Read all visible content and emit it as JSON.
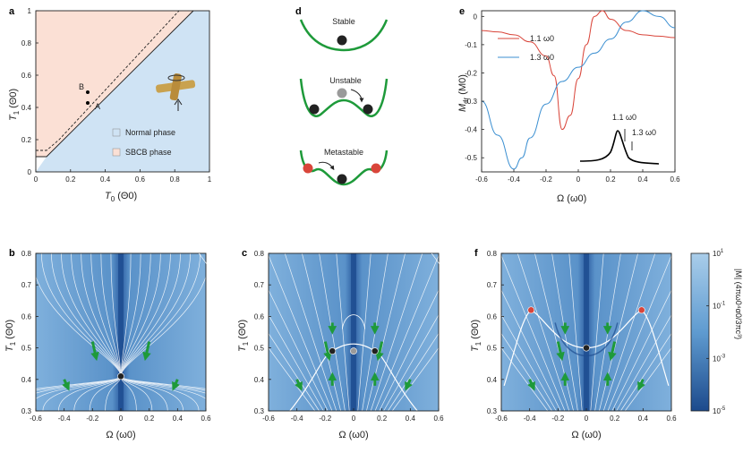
{
  "panels": {
    "a": {
      "label": "a",
      "xlabel": "T",
      "xsub": "0",
      "xunit": "(Θ0)",
      "ylabel": "T",
      "ysub": "1",
      "yunit": "(Θ0)",
      "xticks": [
        "0",
        "0.2",
        "0.4",
        "0.6",
        "0.8",
        "1"
      ],
      "yticks": [
        "0",
        "0.2",
        "0.4",
        "0.6",
        "0.8",
        "1"
      ],
      "legend": [
        "Normal phase",
        "SBCB phase"
      ],
      "pointA": "A",
      "pointB": "B"
    },
    "d": {
      "label": "d",
      "states": [
        "Stable",
        "Unstable",
        "Metastable"
      ]
    },
    "e": {
      "label": "e",
      "ylabel": "M",
      "ysub": "dr",
      "yunit": "(M0)",
      "xlabel": "Ω (ω0)",
      "xticks": [
        "-0.6",
        "-0.4",
        "-0.2",
        "0",
        "0.2",
        "0.4",
        "0.6"
      ],
      "yticks": [
        "0",
        "-0.1",
        "-0.2",
        "-0.3",
        "-0.4",
        "-0.5"
      ],
      "legend": [
        "1.1 ω0",
        "1.3 ω0"
      ],
      "inset_labels": [
        "1.1 ω0",
        "1.3 ω0"
      ]
    },
    "b": {
      "label": "b"
    },
    "c": {
      "label": "c"
    },
    "f": {
      "label": "f"
    },
    "bottom": {
      "xlabel": "Ω (ω0)",
      "ylabel": "T",
      "ysub": "1",
      "yunit": "(Θ0)",
      "xticks": [
        "-0.6",
        "-0.4",
        "-0.2",
        "0",
        "0.2",
        "0.4",
        "0.6"
      ],
      "yticks": [
        "0.3",
        "0.4",
        "0.5",
        "0.6",
        "0.7",
        "0.8"
      ]
    },
    "colorbar": {
      "ticks": [
        "10",
        "10",
        "10",
        "10"
      ],
      "exps": [
        "1",
        "-1",
        "-3",
        "-5"
      ],
      "label": "|M| (4πω0⁴α0/3πc³)"
    }
  },
  "colors": {
    "normal": "#cfe3f4",
    "sbcb": "#fbe0d5",
    "red": "#d9453a",
    "blue": "#3b8fd1",
    "green": "#1e9a3a"
  },
  "chart_data": [
    {
      "type": "area",
      "title": "",
      "xlabel": "T0 (Θ0)",
      "ylabel": "T1 (Θ0)",
      "xlim": [
        0,
        1
      ],
      "ylim": [
        0,
        1
      ],
      "series": [
        {
          "name": "Normal phase"
        },
        {
          "name": "SBCB phase"
        }
      ],
      "points": [
        {
          "name": "A",
          "x": 0.4,
          "y": 0.43
        },
        {
          "name": "B",
          "x": 0.4,
          "y": 0.5
        }
      ]
    },
    {
      "type": "line",
      "title": "",
      "xlabel": "Ω (ω0)",
      "ylabel": "Mdr (M0)",
      "xlim": [
        -0.6,
        0.6
      ],
      "ylim": [
        -0.55,
        0.02
      ],
      "series": [
        {
          "name": "1.1 ω0",
          "x": [
            -0.6,
            -0.5,
            -0.4,
            -0.3,
            -0.2,
            -0.15,
            -0.1,
            -0.05,
            0,
            0.05,
            0.1,
            0.15,
            0.2,
            0.3,
            0.4,
            0.5,
            0.6
          ],
          "y": [
            -0.05,
            -0.055,
            -0.065,
            -0.09,
            -0.14,
            -0.21,
            -0.4,
            -0.35,
            -0.22,
            -0.1,
            0.0,
            0.02,
            -0.01,
            -0.05,
            -0.065,
            -0.07,
            -0.075
          ]
        },
        {
          "name": "1.3 ω0",
          "x": [
            -0.6,
            -0.5,
            -0.4,
            -0.35,
            -0.3,
            -0.2,
            -0.1,
            0,
            0.1,
            0.2,
            0.3,
            0.4,
            0.5,
            0.6
          ],
          "y": [
            -0.3,
            -0.42,
            -0.54,
            -0.5,
            -0.43,
            -0.31,
            -0.23,
            -0.18,
            -0.13,
            -0.08,
            -0.02,
            0.02,
            0.0,
            -0.04
          ]
        }
      ]
    },
    {
      "type": "scatter",
      "title": "",
      "xlabel": "Ω (ω0)",
      "ylabel": "T1 (Θ0)",
      "xlim": [
        -0.6,
        0.6
      ],
      "ylim": [
        0.3,
        0.8
      ],
      "series": [
        {
          "name": "stable",
          "x": [
            0
          ],
          "y": [
            0.41
          ]
        }
      ]
    },
    {
      "type": "scatter",
      "title": "",
      "xlabel": "Ω (ω0)",
      "ylabel": "T1 (Θ0)",
      "xlim": [
        -0.6,
        0.6
      ],
      "ylim": [
        0.3,
        0.8
      ],
      "series": [
        {
          "name": "stable",
          "x": [
            -0.15,
            0.15
          ],
          "y": [
            0.49,
            0.49
          ]
        },
        {
          "name": "unstable",
          "x": [
            0
          ],
          "y": [
            0.49
          ]
        }
      ]
    },
    {
      "type": "scatter",
      "title": "",
      "xlabel": "Ω (ω0)",
      "ylabel": "T1 (Θ0)",
      "xlim": [
        -0.6,
        0.6
      ],
      "ylim": [
        0.3,
        0.8
      ],
      "series": [
        {
          "name": "stable",
          "x": [
            0
          ],
          "y": [
            0.5
          ]
        },
        {
          "name": "metastable",
          "x": [
            -0.39,
            0.39
          ],
          "y": [
            0.62,
            0.62
          ]
        }
      ]
    }
  ]
}
